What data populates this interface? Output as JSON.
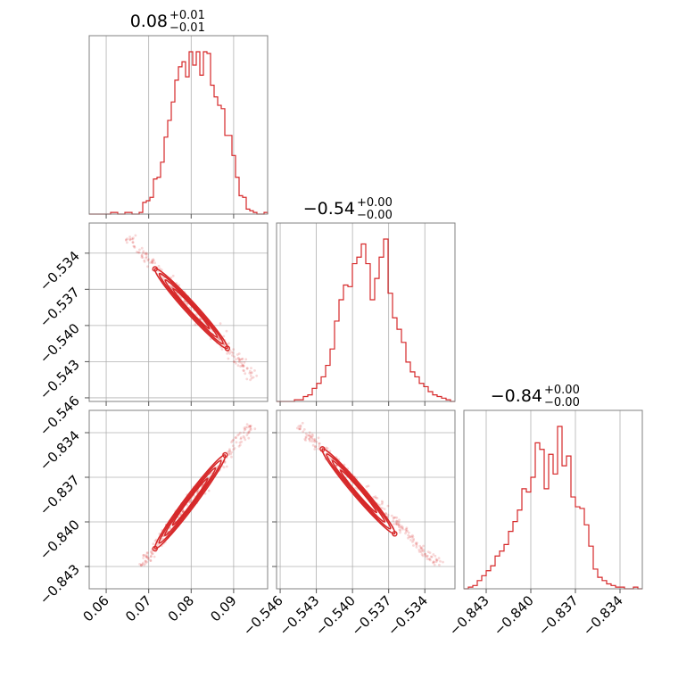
{
  "chart_data": {
    "type": "corner",
    "color": "#d62728",
    "grid": true,
    "parameters": [
      {
        "title_value": "0.08",
        "title_plus": "+0.01",
        "title_minus": "−0.01",
        "range": [
          0.056,
          0.098
        ],
        "ticks": [
          0.06,
          0.07,
          0.08,
          0.09
        ],
        "tick_labels": [
          "0.06",
          "0.07",
          "0.08",
          "0.09"
        ],
        "hist_bins": [
          0,
          0,
          0,
          0,
          0,
          0,
          1,
          1,
          0,
          0,
          1,
          1,
          0,
          0,
          1,
          7,
          8,
          10,
          21,
          22,
          31,
          46,
          56,
          67,
          80,
          88,
          91,
          82,
          97,
          89,
          97,
          83,
          97,
          96,
          77,
          70,
          65,
          63,
          47,
          47,
          35,
          22,
          11,
          10,
          3,
          2,
          1,
          0,
          0,
          1
        ]
      },
      {
        "title_value": "−0.54",
        "title_plus": "+0.00",
        "title_minus": "−0.00",
        "range": [
          -0.5463,
          -0.5315
        ],
        "ticks": [
          -0.546,
          -0.543,
          -0.54,
          -0.537,
          -0.534
        ],
        "tick_labels": [
          "−0.546",
          "−0.543",
          "−0.540",
          "−0.537",
          "−0.534"
        ],
        "hist_bins": [
          0,
          0,
          0,
          0,
          1,
          1,
          3,
          4,
          8,
          11,
          15,
          22,
          32,
          49,
          62,
          71,
          70,
          84,
          88,
          96,
          84,
          62,
          75,
          88,
          99,
          66,
          51,
          44,
          36,
          24,
          18,
          15,
          11,
          9,
          6,
          4,
          3,
          2,
          1,
          0
        ]
      },
      {
        "title_value": "−0.84",
        "title_plus": "+0.00",
        "title_minus": "−0.00",
        "range": [
          -0.8445,
          -0.8325
        ],
        "ticks": [
          -0.843,
          -0.84,
          -0.837,
          -0.834
        ],
        "tick_labels": [
          "−0.843",
          "−0.840",
          "−0.837",
          "−0.834"
        ],
        "hist_bins": [
          0,
          1,
          2,
          5,
          8,
          11,
          14,
          20,
          23,
          27,
          35,
          41,
          48,
          61,
          59,
          68,
          89,
          85,
          61,
          82,
          70,
          99,
          75,
          81,
          56,
          50,
          49,
          39,
          26,
          12,
          7,
          5,
          3,
          2,
          1,
          1,
          0,
          0,
          1,
          0
        ]
      }
    ],
    "pairs": [
      {
        "x_param": 0,
        "y_param": 1,
        "correlation": "negative",
        "x_span": [
          0.065,
          0.095
        ],
        "y_span": [
          -0.5327,
          -0.5444
        ],
        "core_x": [
          0.0715,
          0.0885
        ],
        "core_y": [
          -0.5353,
          -0.5419
        ]
      },
      {
        "x_param": 0,
        "y_param": 2,
        "correlation": "positive",
        "x_span": [
          0.068,
          0.094
        ],
        "y_span": [
          -0.843,
          -0.8335
        ],
        "core_x": [
          0.0715,
          0.088
        ],
        "core_y": [
          -0.8418,
          -0.8355
        ]
      },
      {
        "x_param": 1,
        "y_param": 2,
        "correlation": "negative",
        "x_span": [
          -0.5445,
          -0.5328
        ],
        "y_span": [
          -0.8335,
          -0.843
        ],
        "core_x": [
          -0.5425,
          -0.5365
        ],
        "core_y": [
          -0.8351,
          -0.8408
        ]
      }
    ]
  }
}
